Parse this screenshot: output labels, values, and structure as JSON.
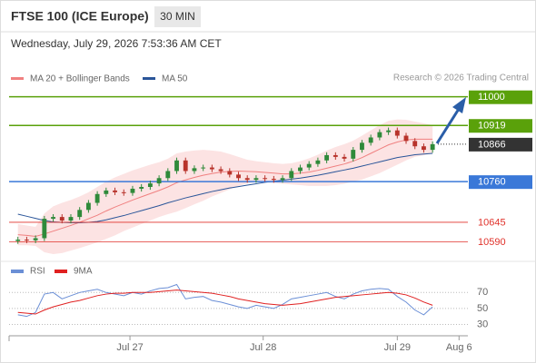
{
  "chart_data": {
    "type": "candlestick",
    "title": "FTSE 100 (ICE Europe)",
    "interval": "30 MIN",
    "subtitle": "Wednesday, July 29, 2026 7:53:36 AM CET",
    "copyright": "Research © 2026 Trading Central",
    "up_color": "#2f8a3a",
    "down_color": "#b8332b",
    "x": [
      1,
      2,
      3,
      4,
      5,
      6,
      7,
      8,
      9,
      10,
      11,
      12,
      13,
      14,
      15,
      16,
      17,
      18,
      19,
      20,
      21,
      22,
      23,
      24,
      25,
      26,
      27,
      28,
      29,
      30,
      31,
      32,
      33,
      34,
      35,
      36,
      37,
      38,
      39,
      40,
      41,
      42,
      43,
      44,
      45,
      46,
      47,
      48
    ],
    "open": [
      10592,
      10596,
      10594,
      10600,
      10655,
      10660,
      10650,
      10660,
      10680,
      10700,
      10725,
      10735,
      10730,
      10728,
      10740,
      10745,
      10755,
      10770,
      10790,
      10820,
      10790,
      10798,
      10800,
      10795,
      10790,
      10780,
      10770,
      10765,
      10770,
      10768,
      10765,
      10770,
      10790,
      10800,
      10810,
      10820,
      10835,
      10830,
      10825,
      10850,
      10870,
      10885,
      10900,
      10905,
      10890,
      10875,
      10860,
      10850
    ],
    "high": [
      10604,
      10604,
      10608,
      10663,
      10668,
      10668,
      10668,
      10688,
      10708,
      10733,
      10743,
      10743,
      10738,
      10748,
      10753,
      10763,
      10778,
      10798,
      10828,
      10828,
      10806,
      10808,
      10808,
      10803,
      10798,
      10788,
      10778,
      10778,
      10778,
      10776,
      10778,
      10798,
      10808,
      10818,
      10828,
      10843,
      10843,
      10838,
      10858,
      10878,
      10893,
      10908,
      10913,
      10913,
      10898,
      10883,
      10868,
      10874
    ],
    "low": [
      10584,
      10586,
      10586,
      10592,
      10647,
      10642,
      10642,
      10652,
      10672,
      10692,
      10717,
      10722,
      10720,
      10720,
      10732,
      10737,
      10747,
      10762,
      10782,
      10782,
      10782,
      10790,
      10787,
      10782,
      10772,
      10762,
      10757,
      10757,
      10760,
      10757,
      10757,
      10762,
      10782,
      10792,
      10802,
      10812,
      10822,
      10817,
      10817,
      10842,
      10862,
      10877,
      10892,
      10882,
      10867,
      10852,
      10842,
      10842
    ],
    "close": [
      10596,
      10594,
      10600,
      10655,
      10660,
      10650,
      10660,
      10680,
      10700,
      10725,
      10735,
      10730,
      10728,
      10740,
      10745,
      10755,
      10770,
      10790,
      10820,
      10790,
      10798,
      10800,
      10795,
      10790,
      10780,
      10770,
      10765,
      10770,
      10768,
      10765,
      10770,
      10790,
      10800,
      10810,
      10820,
      10835,
      10830,
      10825,
      10850,
      10870,
      10885,
      10900,
      10905,
      10890,
      10875,
      10860,
      10850,
      10866
    ],
    "series": [
      {
        "name": "MA 20 + Bollinger Bands",
        "color": "#f08080",
        "values": [
          10610,
          10608,
          10605,
          10612,
          10620,
          10628,
          10636,
          10645,
          10655,
          10665,
          10677,
          10688,
          10698,
          10708,
          10717,
          10726,
          10735,
          10745,
          10757,
          10765,
          10772,
          10778,
          10783,
          10787,
          10789,
          10790,
          10789,
          10788,
          10786,
          10784,
          10782,
          10782,
          10784,
          10787,
          10792,
          10798,
          10804,
          10810,
          10818,
          10828,
          10840,
          10852,
          10864,
          10872,
          10878,
          10880,
          10880,
          10880
        ],
        "upper": [
          10640,
          10636,
          10632,
          10670,
          10690,
          10700,
          10708,
          10718,
          10730,
          10745,
          10760,
          10772,
          10782,
          10792,
          10800,
          10808,
          10815,
          10825,
          10840,
          10845,
          10848,
          10850,
          10848,
          10845,
          10838,
          10830,
          10822,
          10818,
          10815,
          10812,
          10810,
          10812,
          10818,
          10826,
          10836,
          10848,
          10858,
          10866,
          10876,
          10890,
          10905,
          10920,
          10932,
          10936,
          10935,
          10930,
          10925,
          10920
        ],
        "lower": [
          10580,
          10580,
          10578,
          10560,
          10555,
          10558,
          10565,
          10572,
          10580,
          10588,
          10598,
          10608,
          10620,
          10630,
          10640,
          10650,
          10660,
          10668,
          10675,
          10685,
          10696,
          10706,
          10718,
          10728,
          10738,
          10748,
          10755,
          10758,
          10758,
          10756,
          10754,
          10752,
          10750,
          10748,
          10748,
          10748,
          10750,
          10754,
          10760,
          10766,
          10775,
          10784,
          10796,
          10808,
          10820,
          10830,
          10835,
          10840
        ]
      },
      {
        "name": "MA 50",
        "color": "#2a5599",
        "values": [
          10668,
          10662,
          10656,
          10650,
          10646,
          10645,
          10644,
          10644,
          10645,
          10647,
          10652,
          10658,
          10664,
          10671,
          10678,
          10685,
          10692,
          10700,
          10707,
          10714,
          10720,
          10726,
          10732,
          10737,
          10742,
          10746,
          10750,
          10754,
          10758,
          10761,
          10764,
          10767,
          10770,
          10774,
          10778,
          10783,
          10788,
          10793,
          10798,
          10804,
          10810,
          10816,
          10822,
          10828,
          10832,
          10836,
          10838,
          10840
        ]
      }
    ],
    "levels": [
      {
        "value": 11000,
        "color": "#5aa10a",
        "style": "box"
      },
      {
        "value": 10919,
        "color": "#5aa10a",
        "style": "box"
      },
      {
        "value": 10866,
        "color": "#333333",
        "style": "current"
      },
      {
        "value": 10760,
        "color": "#3a78d8",
        "style": "box"
      },
      {
        "value": 10645,
        "color": "#e0322b",
        "style": "text"
      },
      {
        "value": 10590,
        "color": "#e0322b",
        "style": "text"
      }
    ],
    "xlim": [
      0,
      52
    ],
    "ylim": [
      10555,
      11030
    ],
    "xticks": [
      {
        "value": 13.7,
        "label": "Jul 27"
      },
      {
        "value": 28.8,
        "label": "Jul 28"
      },
      {
        "value": 44,
        "label": "Jul 29"
      },
      {
        "value": 51,
        "label": "Aug 6"
      }
    ],
    "rsi": {
      "ylim": [
        18,
        84
      ],
      "yticks": [
        30,
        50,
        70
      ],
      "series": [
        {
          "name": "RSI",
          "color": "#6b8fd6",
          "values": [
            42,
            40,
            45,
            68,
            70,
            62,
            66,
            70,
            72,
            74,
            70,
            68,
            66,
            70,
            68,
            72,
            75,
            76,
            80,
            62,
            64,
            65,
            60,
            58,
            55,
            52,
            50,
            54,
            52,
            50,
            55,
            62,
            64,
            66,
            68,
            70,
            65,
            62,
            68,
            72,
            74,
            75,
            74,
            65,
            58,
            48,
            42,
            52
          ]
        },
        {
          "name": "9MA",
          "color": "#e02020",
          "values": [
            45,
            44,
            43,
            48,
            52,
            55,
            58,
            60,
            63,
            66,
            68,
            69,
            69,
            70,
            70,
            70,
            71,
            72,
            73,
            72,
            71,
            70,
            69,
            67,
            65,
            62,
            60,
            58,
            56,
            55,
            54,
            55,
            56,
            58,
            60,
            62,
            64,
            65,
            66,
            67,
            68,
            69,
            70,
            69,
            67,
            63,
            58,
            54
          ]
        }
      ]
    }
  }
}
